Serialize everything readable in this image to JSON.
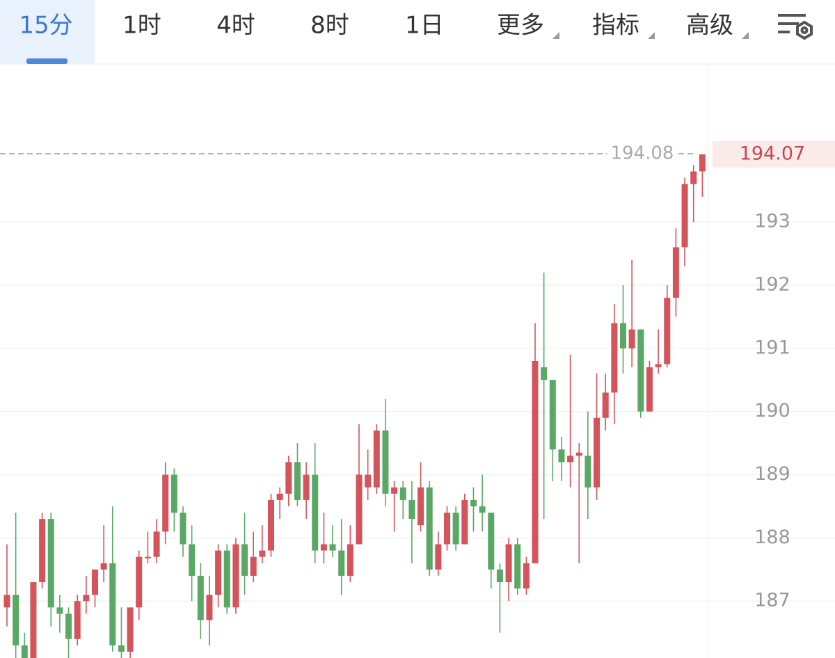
{
  "tabs": [
    "15分",
    "1时",
    "4时",
    "8时",
    "1日",
    "更多",
    "指标",
    "高级"
  ],
  "active_tab": 0,
  "dropdown_tabs": [
    5,
    6,
    7
  ],
  "chart_data": {
    "type": "candlestick",
    "up_color": "#d4545b",
    "down_color": "#5aa865",
    "ylim": [
      186.1,
      195.5
    ],
    "yticks": [
      187,
      188,
      189,
      190,
      191,
      192,
      193
    ],
    "grid": true,
    "marker_line": 194.08,
    "last_price": 194.07,
    "series": {
      "open": [
        186.9,
        187.1,
        186.3,
        186.1,
        187.3,
        188.3,
        186.9,
        186.8,
        186.4,
        187.0,
        187.1,
        187.5,
        187.6,
        186.3,
        186.2,
        186.9,
        187.7,
        187.7,
        188.1,
        189.0,
        188.4,
        187.9,
        187.4,
        186.7,
        187.1,
        187.8,
        186.9,
        187.9,
        187.4,
        187.7,
        187.8,
        188.6,
        188.7,
        189.2,
        188.6,
        189.0,
        187.8,
        187.9,
        187.8,
        187.4,
        187.9,
        188.8,
        188.8,
        189.7,
        188.7,
        188.8,
        188.6,
        188.2,
        188.8,
        187.5,
        187.9,
        188.4,
        187.9,
        188.6,
        188.5,
        188.4,
        187.5,
        187.3,
        187.9,
        187.2,
        187.6,
        190.7,
        190.5,
        189.4,
        189.2,
        189.3,
        189.3,
        188.8,
        189.9,
        190.3,
        191.4,
        191.0,
        191.3,
        190.0,
        190.7,
        190.75,
        191.8,
        192.6,
        193.6,
        193.8
      ],
      "high": [
        187.9,
        188.4,
        186.5,
        187.3,
        188.4,
        188.4,
        187.1,
        186.9,
        187.1,
        187.4,
        187.5,
        188.2,
        188.5,
        186.9,
        186.9,
        187.8,
        188.1,
        188.3,
        189.2,
        189.1,
        188.5,
        188.2,
        187.6,
        187.4,
        187.9,
        187.9,
        188.0,
        188.4,
        188.1,
        188.2,
        188.7,
        188.8,
        189.3,
        189.5,
        189.2,
        189.5,
        188.4,
        188.2,
        188.3,
        188.2,
        189.8,
        189.4,
        189.8,
        190.2,
        188.9,
        188.9,
        188.9,
        189.2,
        188.9,
        188.1,
        188.5,
        188.5,
        188.7,
        188.8,
        189.0,
        188.4,
        187.6,
        188.0,
        188.0,
        187.7,
        191.4,
        192.2,
        190.5,
        189.6,
        190.9,
        189.5,
        190.0,
        190.6,
        190.6,
        191.7,
        192.0,
        192.4,
        191.3,
        190.8,
        191.3,
        192.0,
        192.9,
        193.7,
        193.9,
        194.07
      ],
      "low": [
        186.6,
        186.1,
        186.1,
        186.1,
        187.2,
        186.6,
        186.5,
        186.1,
        186.3,
        186.8,
        186.9,
        187.3,
        186.2,
        186.1,
        186.1,
        186.7,
        187.6,
        187.6,
        187.9,
        188.1,
        187.7,
        187.0,
        186.4,
        186.3,
        186.9,
        186.8,
        186.8,
        187.1,
        187.3,
        187.6,
        187.7,
        188.3,
        188.5,
        188.5,
        188.3,
        187.6,
        187.6,
        187.7,
        187.1,
        187.3,
        187.9,
        188.6,
        188.7,
        188.5,
        188.1,
        188.3,
        187.6,
        188.1,
        187.4,
        187.4,
        187.8,
        187.8,
        187.9,
        188.1,
        188.1,
        187.2,
        186.5,
        187.0,
        187.1,
        187.1,
        187.6,
        188.3,
        188.9,
        188.9,
        188.8,
        187.6,
        188.3,
        188.6,
        189.7,
        189.8,
        190.6,
        190.7,
        189.9,
        190.0,
        190.6,
        190.7,
        191.5,
        192.3,
        193.0,
        193.4
      ],
      "close": [
        187.1,
        186.3,
        186.1,
        187.3,
        188.3,
        186.9,
        186.8,
        186.4,
        187.0,
        187.1,
        187.5,
        187.6,
        186.3,
        186.2,
        186.9,
        187.7,
        187.7,
        188.1,
        189.0,
        188.4,
        187.9,
        187.4,
        186.7,
        187.1,
        187.8,
        186.9,
        187.9,
        187.4,
        187.7,
        187.8,
        188.6,
        188.7,
        189.2,
        188.6,
        189.0,
        187.8,
        187.9,
        187.8,
        187.4,
        187.9,
        189.0,
        189.0,
        189.7,
        188.7,
        188.8,
        188.6,
        188.3,
        188.8,
        187.5,
        187.9,
        188.4,
        187.9,
        188.6,
        188.5,
        188.4,
        187.5,
        187.3,
        187.9,
        187.2,
        187.6,
        190.8,
        190.5,
        189.4,
        189.2,
        189.3,
        189.35,
        188.8,
        189.9,
        190.3,
        191.4,
        191.0,
        191.3,
        190.0,
        190.7,
        190.75,
        191.8,
        192.6,
        193.6,
        193.8,
        194.07
      ]
    }
  }
}
